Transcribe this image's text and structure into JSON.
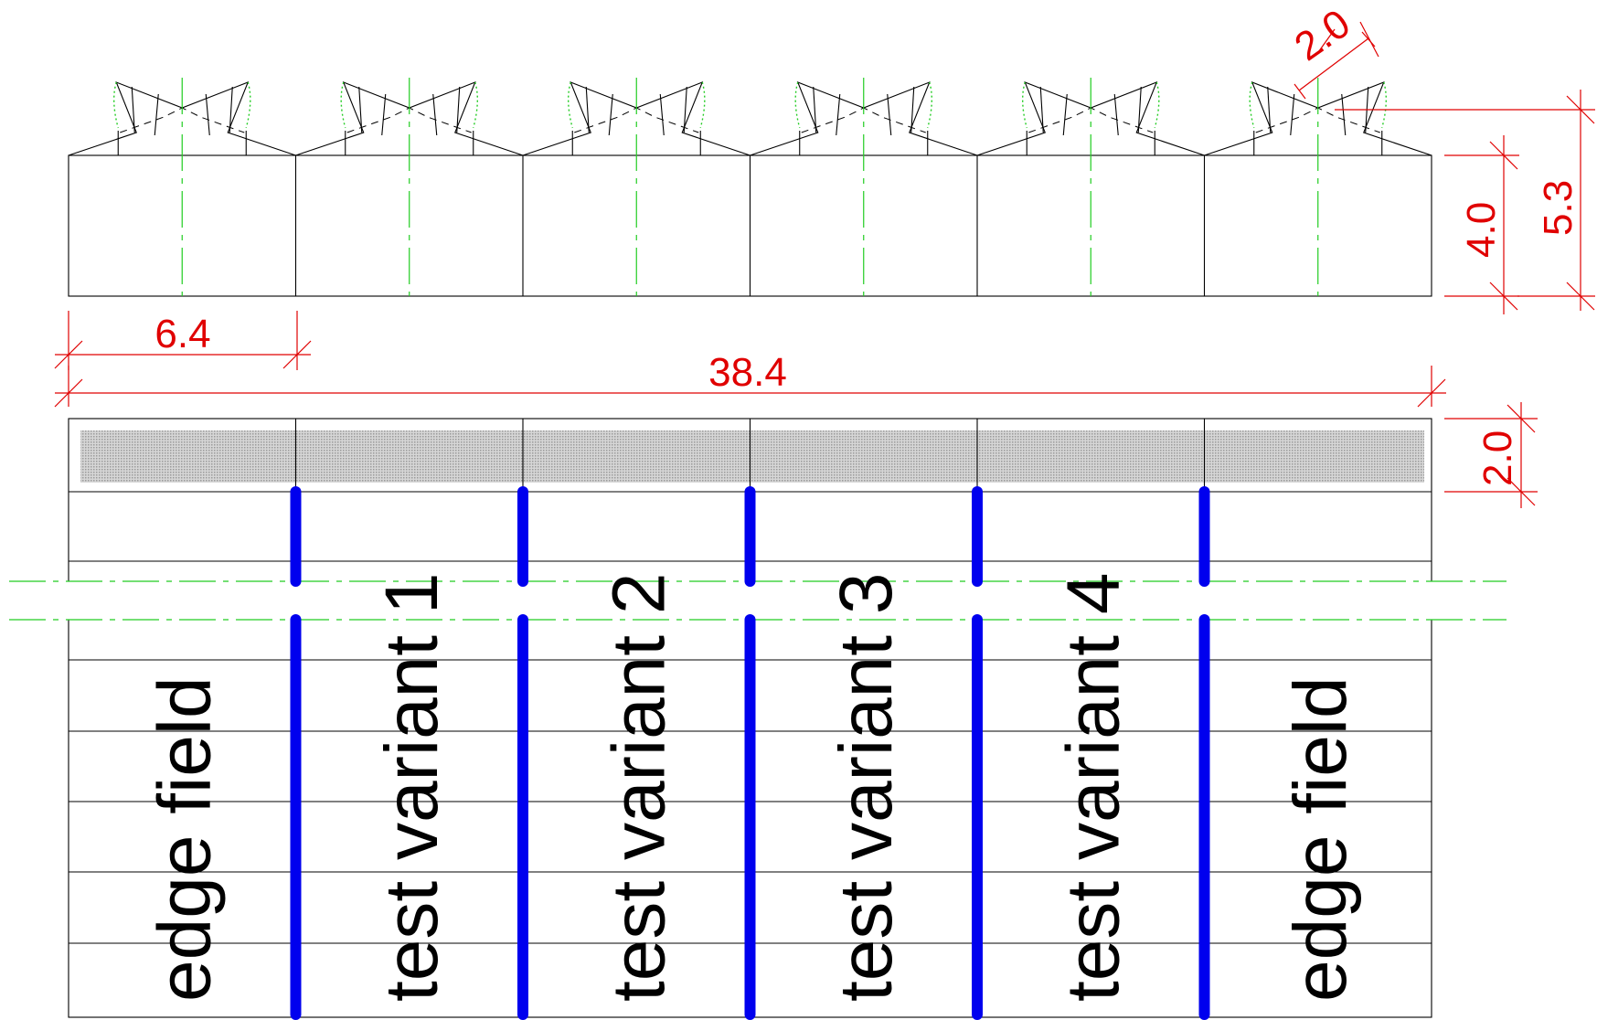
{
  "dimensions": {
    "segment_width": "6.4",
    "total_width": "38.4",
    "tooth_width": "2.0",
    "body_height": "4.0",
    "total_height": "5.3",
    "strip_height": "2.0"
  },
  "fields": [
    {
      "label": "edge field"
    },
    {
      "label": "test variant 1"
    },
    {
      "label": "test variant 2"
    },
    {
      "label": "test variant 3"
    },
    {
      "label": "test variant 4"
    },
    {
      "label": "edge field"
    }
  ],
  "colors": {
    "dimension": "#e00000",
    "centerline": "#22cc22",
    "separator": "#0000ee",
    "strip_fill": "#bdbdbd"
  }
}
